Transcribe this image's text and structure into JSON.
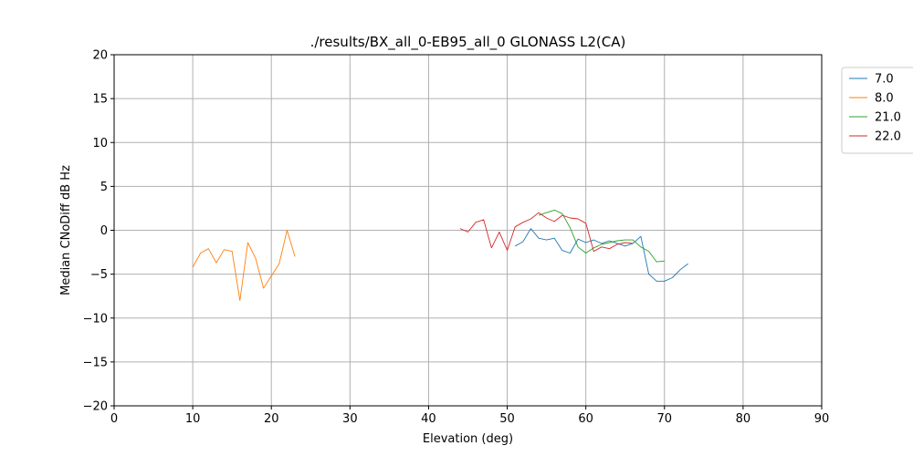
{
  "chart_data": {
    "type": "line",
    "title": "./results/BX_all_0-EB95_all_0 GLONASS L2(CA)",
    "xlabel": "Elevation (deg)",
    "ylabel": "Median CNoDiff dB Hz",
    "xlim": [
      0,
      90
    ],
    "ylim": [
      -20,
      20
    ],
    "xticks": [
      0,
      10,
      20,
      30,
      40,
      50,
      60,
      70,
      80,
      90
    ],
    "yticks": [
      -20,
      -15,
      -10,
      -5,
      0,
      5,
      10,
      15,
      20
    ],
    "grid": true,
    "legend_position": "top-right outside",
    "series": [
      {
        "name": "7.0",
        "color": "#1f77b4",
        "x": [
          51,
          52,
          53,
          54,
          55,
          56,
          57,
          58,
          59,
          60,
          61,
          62,
          63,
          64,
          65,
          66,
          67,
          68,
          69,
          70,
          71,
          72,
          73
        ],
        "y": [
          -1.8,
          -1.3,
          0.2,
          -0.9,
          -1.1,
          -0.9,
          -2.3,
          -2.6,
          -1.0,
          -1.4,
          -1.1,
          -1.5,
          -1.2,
          -1.5,
          -1.8,
          -1.5,
          -0.7,
          -5.0,
          -5.8,
          -5.8,
          -5.4,
          -4.5,
          -3.8
        ]
      },
      {
        "name": "8.0",
        "color": "#ff7f0e",
        "x": [
          10,
          11,
          12,
          13,
          14,
          15,
          16,
          17,
          18,
          19,
          20,
          21,
          22,
          23
        ],
        "y": [
          -4.2,
          -2.6,
          -2.1,
          -3.7,
          -2.2,
          -2.4,
          -8.0,
          -1.4,
          -3.2,
          -6.6,
          -5.2,
          -3.8,
          0.0,
          -3.0
        ]
      },
      {
        "name": "21.0",
        "color": "#2ca02c",
        "x": [
          54,
          55,
          56,
          57,
          58,
          59,
          60,
          61,
          62,
          63,
          64,
          65,
          66,
          67,
          68,
          69,
          70
        ],
        "y": [
          1.7,
          2.0,
          2.3,
          1.9,
          0.3,
          -1.9,
          -2.6,
          -2.0,
          -1.6,
          -1.4,
          -1.2,
          -1.1,
          -1.1,
          -1.9,
          -2.4,
          -3.6,
          -3.5
        ]
      },
      {
        "name": "22.0",
        "color": "#d62728",
        "x": [
          44,
          45,
          46,
          47,
          48,
          49,
          50,
          51,
          52,
          53,
          54,
          55,
          56,
          57,
          58,
          59,
          60,
          61,
          62,
          63,
          64,
          65,
          66
        ],
        "y": [
          0.2,
          -0.2,
          0.9,
          1.2,
          -2.0,
          -0.2,
          -2.3,
          0.4,
          0.9,
          1.3,
          2.0,
          1.4,
          1.0,
          1.7,
          1.4,
          1.3,
          0.8,
          -2.4,
          -1.9,
          -2.1,
          -1.6,
          -1.4,
          -1.5
        ]
      }
    ]
  }
}
